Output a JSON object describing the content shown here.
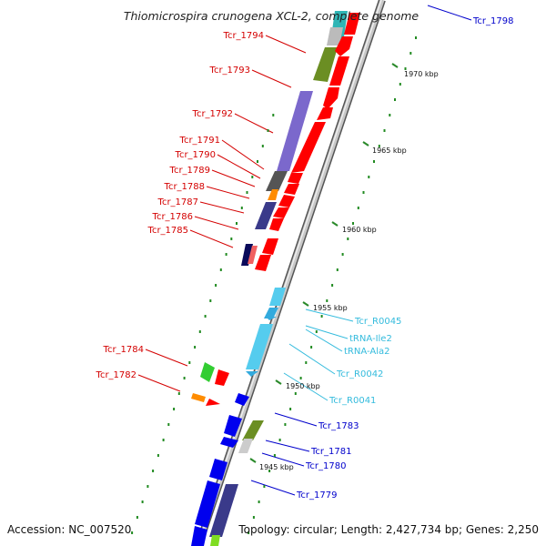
{
  "title": "Thiomicrospira crunogena XCL-2, complete genome",
  "footer": {
    "accession": "Accession: NC_007520",
    "summary": "Topology: circular; Length: 2,427,734 bp; Genes: 2,250"
  },
  "scale_labels": [
    "1970 kbp",
    "1965 kbp",
    "1960 kbp",
    "1955 kbp",
    "1950 kbp",
    "1945 kbp"
  ],
  "colors": {
    "red_label": "#d40000",
    "cyan_label": "#33bbdd",
    "blue_label": "#0000cc",
    "backbone": "#8c8c8c",
    "tick": "#228b22"
  },
  "gene_labels": [
    {
      "text": "Tcr_1798",
      "color": "blue"
    },
    {
      "text": "Tcr_1794",
      "color": "red"
    },
    {
      "text": "Tcr_1793",
      "color": "red"
    },
    {
      "text": "Tcr_1792",
      "color": "red"
    },
    {
      "text": "Tcr_1791",
      "color": "red"
    },
    {
      "text": "Tcr_1790",
      "color": "red"
    },
    {
      "text": "Tcr_1789",
      "color": "red"
    },
    {
      "text": "Tcr_1788",
      "color": "red"
    },
    {
      "text": "Tcr_1787",
      "color": "red"
    },
    {
      "text": "Tcr_1786",
      "color": "red"
    },
    {
      "text": "Tcr_1785",
      "color": "red"
    },
    {
      "text": "Tcr_1784",
      "color": "red"
    },
    {
      "text": "Tcr_1782",
      "color": "red"
    },
    {
      "text": "Tcr_R0045",
      "color": "cyan"
    },
    {
      "text": "tRNA-Ile2",
      "color": "cyan"
    },
    {
      "text": "tRNA-Ala2",
      "color": "cyan"
    },
    {
      "text": "Tcr_R0042",
      "color": "cyan"
    },
    {
      "text": "Tcr_R0041",
      "color": "cyan"
    },
    {
      "text": "Tcr_1783",
      "color": "blue"
    },
    {
      "text": "Tcr_1781",
      "color": "blue"
    },
    {
      "text": "Tcr_1780",
      "color": "blue"
    },
    {
      "text": "Tcr_1779",
      "color": "blue"
    }
  ]
}
